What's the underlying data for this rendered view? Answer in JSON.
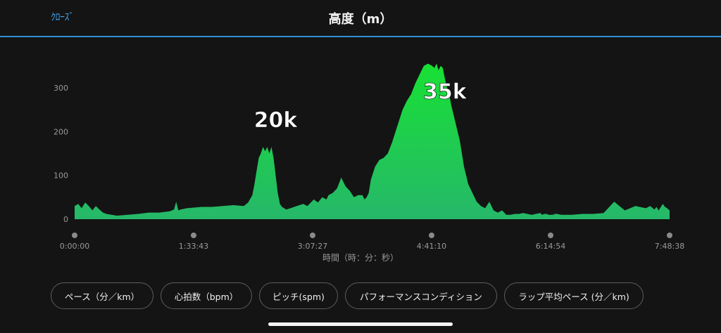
{
  "header": {
    "close_label": "ｸﾛｰｽﾞ",
    "title": "高度（m）"
  },
  "chart_data": {
    "type": "area",
    "title": "",
    "ylabel": "",
    "xlabel": "時間（時：分：秒）",
    "ylim": [
      0,
      380
    ],
    "y_ticks": [
      0,
      100,
      200,
      300
    ],
    "xlim": [
      0,
      28118
    ],
    "x_tick_labels": [
      "0:00:00",
      "1:33:43",
      "3:07:27",
      "4:41:10",
      "6:14:54",
      "7:48:38"
    ],
    "x_tick_values": [
      0,
      5623,
      11247,
      16870,
      22494,
      28118
    ],
    "grid": false,
    "fill_color_top": "#18e034",
    "fill_color_bottom": "#26b86a",
    "series": [
      {
        "x": [
          0,
          170,
          330,
          500,
          670,
          840,
          1000,
          1170,
          1340,
          1500,
          2000,
          2500,
          3000,
          3500,
          4000,
          4500,
          4700,
          4800,
          4900,
          5000,
          5300,
          6000,
          6500,
          7000,
          7500,
          8000,
          8200,
          8400,
          8500,
          8600,
          8700,
          8800,
          8900,
          9000,
          9100,
          9200,
          9300,
          9400,
          9500,
          9600,
          9700,
          9800,
          9900,
          10000,
          10200,
          10500,
          10800,
          11000,
          11200,
          11300,
          11500,
          11700,
          11900,
          12000,
          12200,
          12400,
          12600,
          12800,
          13000,
          13200,
          13400,
          13600,
          13700,
          13800,
          13900,
          14000,
          14200,
          14400,
          14600,
          14800,
          15000,
          15200,
          15300,
          15500,
          15700,
          15900,
          16100,
          16300,
          16500,
          16700,
          16900,
          17000,
          17100,
          17200,
          17300,
          17400,
          17500,
          17600,
          17700,
          17800,
          17900,
          18000,
          18100,
          18200,
          18300,
          18400,
          18600,
          18800,
          19000,
          19200,
          19400,
          19600,
          19800,
          20000,
          20200,
          20400,
          20600,
          20800,
          21000,
          21200,
          21400,
          21600,
          21800,
          22000,
          22100,
          22200,
          22300,
          22400,
          22500,
          22600,
          22700,
          22800,
          23000,
          23500,
          24000,
          24500,
          25000,
          25500,
          26000,
          26500,
          27000,
          27200,
          27400,
          27500,
          27600,
          27800,
          27900,
          28000,
          28118
        ],
        "y": [
          30,
          35,
          25,
          38,
          30,
          20,
          30,
          22,
          15,
          12,
          8,
          10,
          12,
          15,
          15,
          18,
          22,
          40,
          20,
          22,
          25,
          28,
          28,
          30,
          32,
          30,
          38,
          55,
          80,
          110,
          140,
          150,
          165,
          155,
          165,
          150,
          165,
          140,
          100,
          60,
          35,
          28,
          25,
          22,
          25,
          30,
          35,
          30,
          40,
          45,
          38,
          50,
          45,
          55,
          60,
          70,
          95,
          75,
          65,
          50,
          55,
          55,
          45,
          50,
          60,
          90,
          120,
          135,
          140,
          150,
          175,
          205,
          220,
          250,
          270,
          285,
          310,
          330,
          350,
          355,
          350,
          345,
          355,
          340,
          350,
          345,
          320,
          300,
          285,
          260,
          240,
          220,
          200,
          180,
          150,
          120,
          80,
          60,
          40,
          30,
          25,
          40,
          20,
          15,
          20,
          10,
          10,
          12,
          12,
          14,
          12,
          10,
          12,
          14,
          10,
          12,
          12,
          10,
          10,
          10,
          12,
          12,
          10,
          10,
          12,
          12,
          14,
          40,
          20,
          30,
          25,
          30,
          22,
          28,
          20,
          35,
          28,
          25,
          20
        ]
      }
    ],
    "annotations": [
      {
        "text": "20k",
        "x": 9500,
        "y": 210
      },
      {
        "text": "35k",
        "x": 17500,
        "y": 275
      }
    ]
  },
  "chips": [
    {
      "label": "ペース（分／km）"
    },
    {
      "label": "心拍数（bpm）"
    },
    {
      "label": "ピッチ(spm)"
    },
    {
      "label": "パフォーマンスコンディション"
    },
    {
      "label": "ラップ平均ペース (分／km)"
    }
  ]
}
